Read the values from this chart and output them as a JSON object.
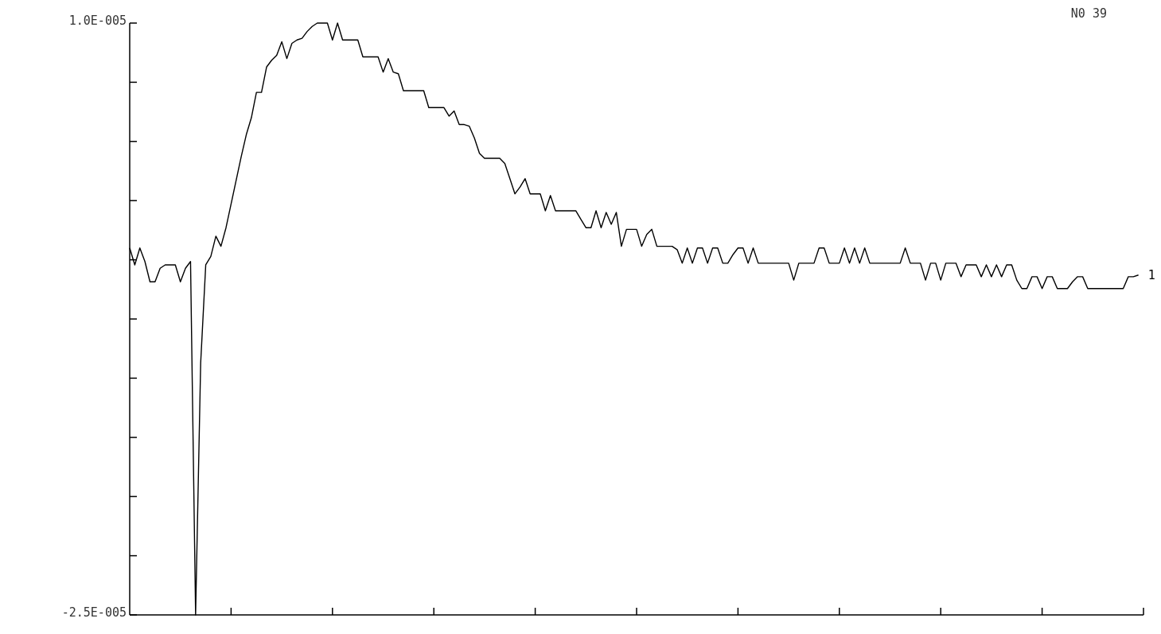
{
  "chart_data": {
    "type": "line",
    "annotations": [
      "N0 39"
    ],
    "tick_labels": "y",
    "categories": [
      null,
      null,
      null,
      null,
      null,
      null,
      null,
      null,
      null,
      null,
      null,
      null,
      null,
      null,
      null,
      null,
      null,
      null,
      null,
      null,
      null,
      null,
      null,
      null,
      null,
      null,
      null,
      null,
      null,
      null,
      null,
      null,
      null,
      null,
      null,
      null,
      null,
      null,
      null,
      null,
      null,
      null,
      null,
      null,
      null,
      null,
      null,
      null,
      null,
      null,
      null,
      null,
      null,
      null,
      null,
      null,
      null,
      null,
      null,
      null,
      null,
      null,
      null,
      null,
      null,
      null,
      null,
      null,
      null,
      null,
      null,
      null,
      null,
      null,
      null,
      null,
      null,
      null,
      null,
      null,
      null,
      null,
      null,
      null,
      null,
      null,
      null,
      null,
      null,
      null,
      null,
      null,
      null,
      null,
      null,
      null,
      null,
      null,
      null,
      null,
      null,
      null,
      null,
      null,
      null,
      null,
      null,
      null,
      null,
      null,
      null,
      null,
      null,
      null,
      null,
      null,
      null,
      null,
      null,
      null,
      null,
      null,
      null,
      null,
      null,
      null,
      null,
      null,
      null,
      null,
      null,
      null,
      null,
      null,
      null,
      null,
      null,
      null,
      null,
      null,
      null,
      null,
      null,
      null,
      null,
      null,
      null,
      null,
      null,
      null,
      null,
      null,
      null,
      null,
      null,
      null,
      null,
      null,
      null,
      null,
      null,
      null,
      null,
      null,
      null,
      null,
      null,
      null,
      null,
      null,
      null,
      null,
      null,
      null,
      null,
      null,
      null,
      null,
      null,
      null,
      null,
      null,
      null,
      null,
      null,
      null,
      null,
      null,
      null,
      null,
      null,
      null,
      null,
      null,
      null,
      null,
      null,
      null,
      null,
      null
    ],
    "ylim": [
      -2.5e-05,
      1e-05
    ],
    "yticks": [
      {
        "value": 1e-05,
        "label": "1.0E-005"
      },
      {
        "value": 6.5e-06,
        "label": null
      },
      {
        "value": 3e-06,
        "label": null
      },
      {
        "value": -5e-07,
        "label": null
      },
      {
        "value": -4e-06,
        "label": null
      },
      {
        "value": -7.5e-06,
        "label": null
      },
      {
        "value": -1.1e-05,
        "label": null
      },
      {
        "value": -1.45e-05,
        "label": null
      },
      {
        "value": -1.8e-05,
        "label": null
      },
      {
        "value": -2.15e-05,
        "label": null
      },
      {
        "value": -2.5e-05,
        "label": "-2.5E-005"
      }
    ],
    "series": [
      {
        "name": "1",
        "color": "#000000",
        "values": [
          -3.3e-06,
          -4.3e-06,
          -3.3e-06,
          -4.1e-06,
          -5.3e-06,
          -5.3e-06,
          -4.5e-06,
          -4.3e-06,
          -4.3e-06,
          -4.3e-06,
          -5.3e-06,
          -4.5e-06,
          -4.1e-06,
          -2.5e-05,
          -1.01e-05,
          -4.3e-06,
          -3.8e-06,
          -2.6e-06,
          -3.2e-06,
          -2.1e-06,
          -7e-07,
          7e-07,
          2.1e-06,
          3.4e-06,
          4.4e-06,
          5.9e-06,
          5.9e-06,
          7.4e-06,
          7.8e-06,
          8.1e-06,
          8.9e-06,
          7.9e-06,
          8.8e-06,
          9e-06,
          9.1e-06,
          9.5e-06,
          9.8e-06,
          1e-05,
          1e-05,
          1e-05,
          9e-06,
          1e-05,
          9e-06,
          9e-06,
          9e-06,
          9e-06,
          8e-06,
          8e-06,
          8e-06,
          8e-06,
          7.1e-06,
          7.9e-06,
          7.1e-06,
          7e-06,
          6e-06,
          6e-06,
          6e-06,
          6e-06,
          6e-06,
          5e-06,
          5e-06,
          5e-06,
          5e-06,
          4.5e-06,
          4.8e-06,
          4e-06,
          4e-06,
          3.9e-06,
          3.2e-06,
          2.3e-06,
          2e-06,
          2e-06,
          2e-06,
          2e-06,
          1.7e-06,
          8e-07,
          -1e-07,
          3e-07,
          8e-07,
          -1e-07,
          -1e-07,
          -1e-07,
          -1.1e-06,
          -2e-07,
          -1.1e-06,
          -1.1e-06,
          -1.1e-06,
          -1.1e-06,
          -1.1e-06,
          -1.6e-06,
          -2.1e-06,
          -2.1e-06,
          -1.1e-06,
          -2.1e-06,
          -1.2e-06,
          -1.9e-06,
          -1.2e-06,
          -3.2e-06,
          -2.2e-06,
          -2.2e-06,
          -2.2e-06,
          -3.2e-06,
          -2.5e-06,
          -2.2e-06,
          -3.2e-06,
          -3.2e-06,
          -3.2e-06,
          -3.2e-06,
          -3.4e-06,
          -4.2e-06,
          -3.3e-06,
          -4.2e-06,
          -3.3e-06,
          -3.3e-06,
          -4.2e-06,
          -3.3e-06,
          -3.3e-06,
          -4.2e-06,
          -4.2e-06,
          -3.7e-06,
          -3.3e-06,
          -3.3e-06,
          -4.2e-06,
          -3.3e-06,
          -4.2e-06,
          -4.2e-06,
          -4.2e-06,
          -4.2e-06,
          -4.2e-06,
          -4.2e-06,
          -4.2e-06,
          -5.2e-06,
          -4.2e-06,
          -4.2e-06,
          -4.2e-06,
          -4.2e-06,
          -3.3e-06,
          -3.3e-06,
          -4.2e-06,
          -4.2e-06,
          -4.2e-06,
          -3.3e-06,
          -4.2e-06,
          -3.3e-06,
          -4.2e-06,
          -3.3e-06,
          -4.2e-06,
          -4.2e-06,
          -4.2e-06,
          -4.2e-06,
          -4.2e-06,
          -4.2e-06,
          -4.2e-06,
          -3.3e-06,
          -4.2e-06,
          -4.2e-06,
          -4.2e-06,
          -5.2e-06,
          -4.2e-06,
          -4.2e-06,
          -5.2e-06,
          -4.2e-06,
          -4.2e-06,
          -4.2e-06,
          -5e-06,
          -4.3e-06,
          -4.3e-06,
          -4.3e-06,
          -5e-06,
          -4.3e-06,
          -5e-06,
          -4.3e-06,
          -5e-06,
          -4.3e-06,
          -4.3e-06,
          -5.2e-06,
          -5.7e-06,
          -5.7e-06,
          -5e-06,
          -5e-06,
          -5.7e-06,
          -5e-06,
          -5e-06,
          -5.7e-06,
          -5.7e-06,
          -5.7e-06,
          -5.3e-06,
          -5e-06,
          -5e-06,
          -5.7e-06,
          -5.7e-06,
          -5.7e-06,
          -5.7e-06,
          -5.7e-06,
          -5.7e-06,
          -5.7e-06,
          -5.7e-06,
          -5e-06,
          -5e-06,
          -4.9e-06
        ]
      }
    ]
  }
}
